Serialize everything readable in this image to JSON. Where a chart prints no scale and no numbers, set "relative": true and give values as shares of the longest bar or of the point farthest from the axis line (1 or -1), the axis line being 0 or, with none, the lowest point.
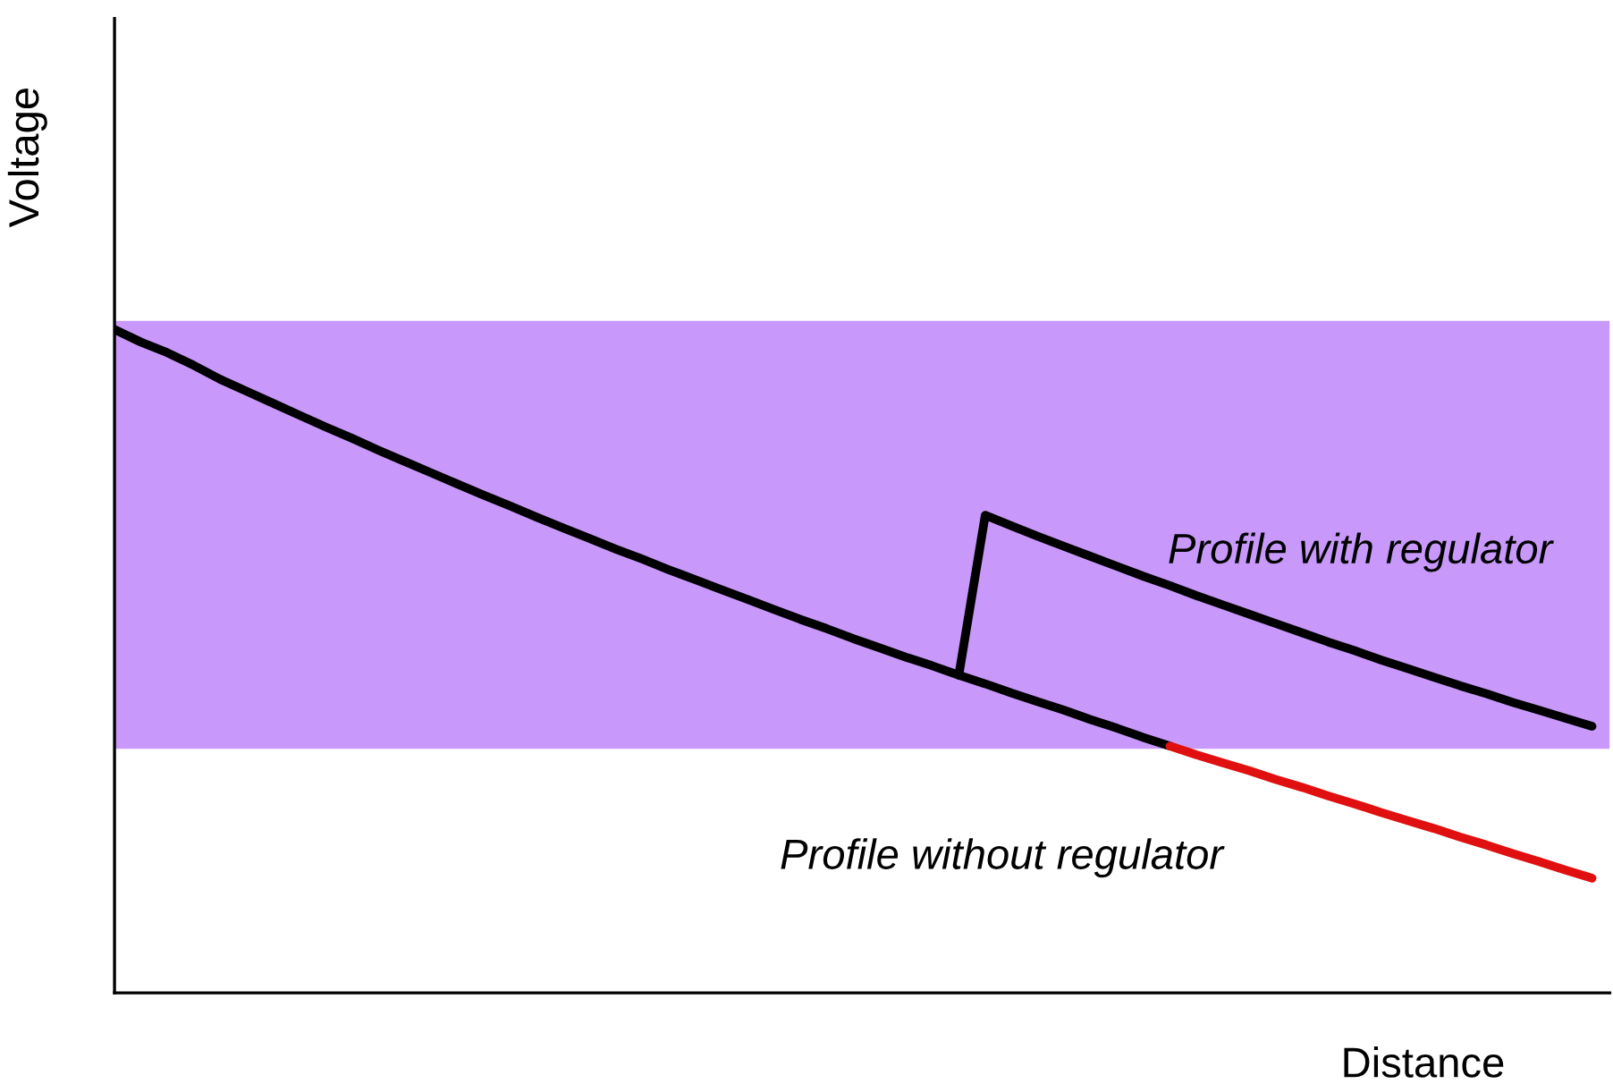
{
  "chart_data": {
    "type": "line",
    "relative": true,
    "xlabel": "Distance",
    "ylabel": "Voltage",
    "marker": "none",
    "line_style": "solid",
    "categories": [
      null,
      null,
      null,
      null,
      null,
      null,
      null,
      null,
      null,
      null,
      null,
      null,
      null,
      null,
      null,
      null,
      null,
      null,
      null,
      null,
      null,
      null,
      null,
      null,
      null,
      null,
      null,
      null,
      null,
      null,
      null,
      null,
      null,
      null,
      null,
      null,
      null,
      null,
      null,
      null,
      null,
      null,
      null,
      null,
      null,
      null,
      null,
      null,
      null,
      null,
      null,
      null,
      null,
      null,
      null,
      null,
      null
    ],
    "series": [
      {
        "name": "Profile without regulator",
        "color": "#000000",
        "values": [
          1.0,
          0.981,
          0.965,
          0.946,
          0.925,
          0.907,
          0.889,
          0.871,
          0.853,
          0.836,
          0.818,
          0.801,
          0.784,
          0.767,
          0.75,
          0.734,
          0.717,
          0.701,
          0.685,
          0.669,
          0.654,
          0.638,
          0.623,
          0.608,
          0.593,
          0.578,
          0.563,
          0.549,
          0.534,
          0.52,
          0.506,
          0.493,
          0.479,
          0.466,
          0.452,
          0.439,
          0.426,
          0.412,
          0.399,
          0.385,
          0.372,
          null,
          null,
          null,
          null,
          null,
          null,
          null,
          null,
          null,
          null,
          null,
          null,
          null,
          null,
          null,
          null
        ]
      },
      {
        "color": "#e01010",
        "values": [
          null,
          null,
          null,
          null,
          null,
          null,
          null,
          null,
          null,
          null,
          null,
          null,
          null,
          null,
          null,
          null,
          null,
          null,
          null,
          null,
          null,
          null,
          null,
          null,
          null,
          null,
          null,
          null,
          null,
          null,
          null,
          null,
          null,
          null,
          null,
          null,
          null,
          null,
          null,
          null,
          0.372,
          0.359,
          0.347,
          0.335,
          0.322,
          0.31,
          0.297,
          0.285,
          0.272,
          0.26,
          0.248,
          0.235,
          0.223,
          0.21,
          0.198,
          0.185,
          0.173
        ]
      },
      {
        "name": "Profile with regulator",
        "color": "#000000",
        "values": [
          null,
          null,
          null,
          null,
          null,
          null,
          null,
          null,
          null,
          null,
          null,
          null,
          null,
          null,
          null,
          null,
          null,
          null,
          null,
          null,
          null,
          null,
          null,
          null,
          null,
          null,
          null,
          null,
          null,
          null,
          null,
          null,
          0.479,
          0.72,
          0.704,
          0.688,
          0.673,
          0.658,
          0.643,
          0.628,
          0.614,
          0.599,
          0.585,
          0.571,
          0.557,
          0.543,
          0.529,
          0.516,
          0.502,
          0.489,
          0.476,
          0.463,
          0.451,
          0.438,
          0.426,
          0.414,
          0.402
        ]
      }
    ],
    "bands": [
      {
        "axis": "y",
        "from": 0.368,
        "to": 1.013,
        "color": "#c899fa"
      }
    ]
  }
}
